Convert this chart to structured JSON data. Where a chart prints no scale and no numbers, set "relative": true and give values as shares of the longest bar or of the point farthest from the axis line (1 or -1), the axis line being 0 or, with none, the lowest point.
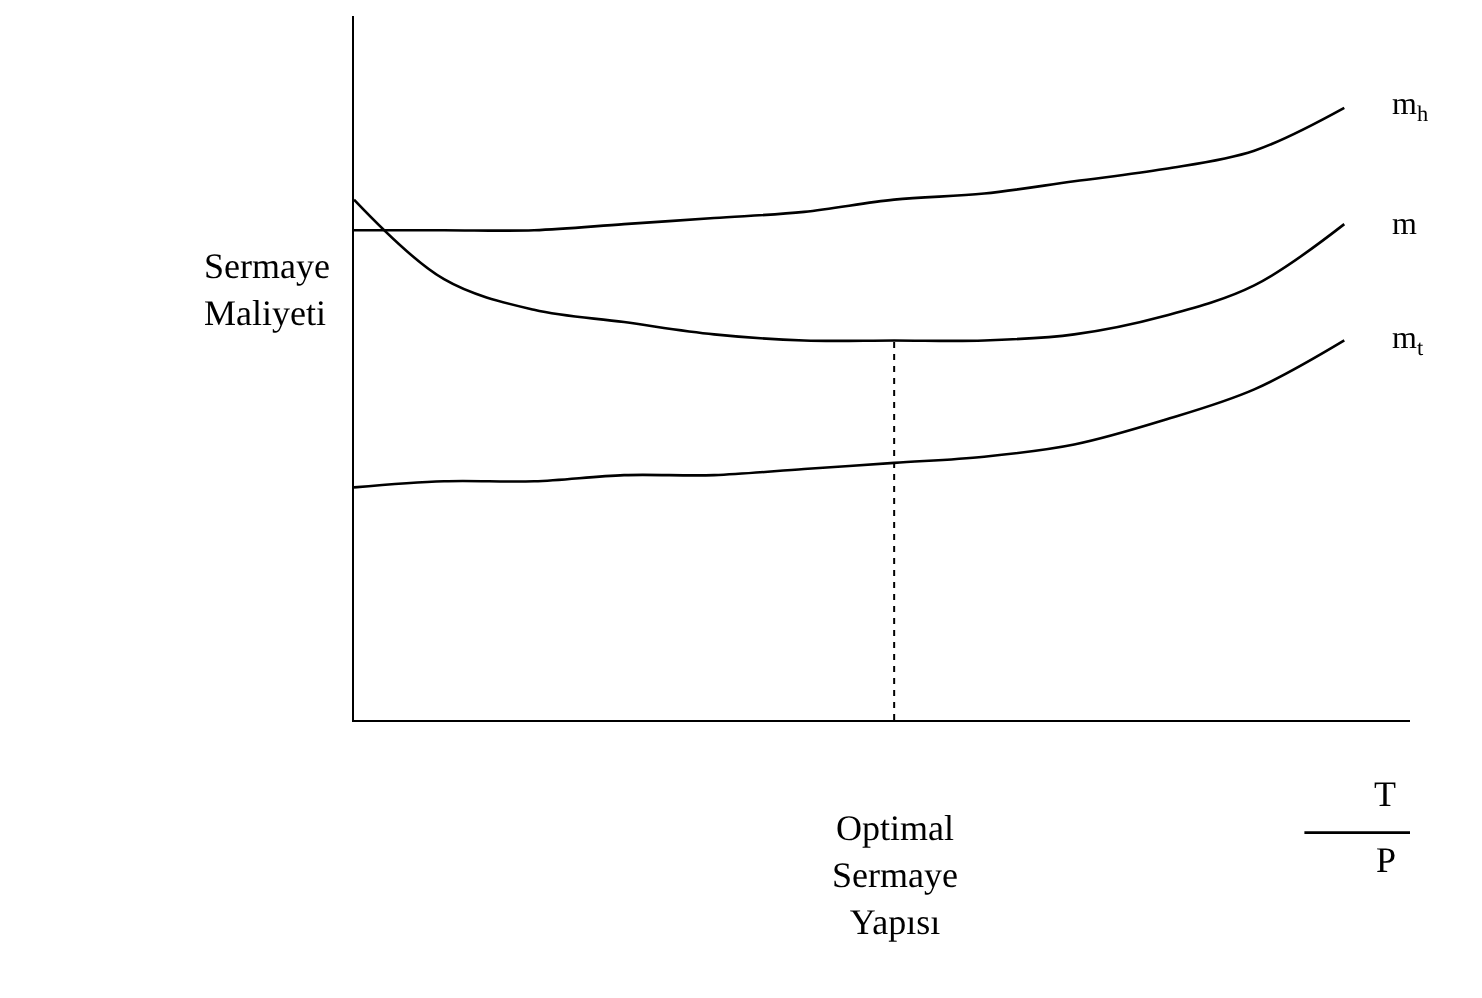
{
  "chart_data": {
    "type": "line",
    "relative": true,
    "ylabel": "Sermaye\nMaliyeti",
    "xlabel": "Optimal\nSermaye\nYapısı",
    "categories": [
      null,
      null,
      null,
      null,
      null,
      null,
      null,
      null,
      null,
      null,
      null,
      null
    ],
    "series": [
      {
        "name": "m$_{h}$",
        "color": "#000000",
        "values": [
          0.8,
          0.8,
          0.8,
          0.81,
          0.82,
          0.83,
          0.85,
          0.86,
          0.88,
          0.9,
          0.93,
          1.0
        ]
      },
      {
        "name": "m",
        "color": "#000000",
        "values": [
          0.85,
          0.72,
          0.67,
          0.65,
          0.63,
          0.62,
          0.62,
          0.62,
          0.63,
          0.66,
          0.71,
          0.81
        ]
      },
      {
        "name": "m$_{t}$",
        "color": "#000000",
        "values": [
          0.38,
          0.39,
          0.39,
          0.4,
          0.4,
          0.41,
          0.42,
          0.43,
          0.45,
          0.49,
          0.54,
          0.62
        ]
      }
    ],
    "annotations": [
      "T",
      "P"
    ],
    "marker": "none",
    "line_style": "solid",
    "legend": false
  }
}
